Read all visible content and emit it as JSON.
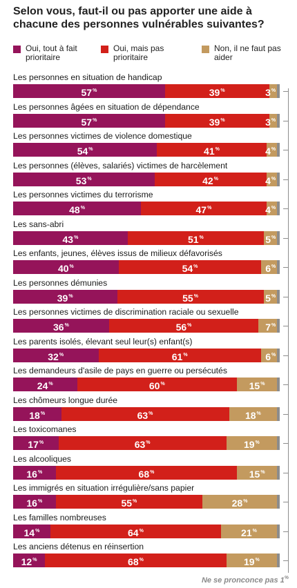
{
  "title": "Selon vous, faut-il ou pas apporter une aide à chacune des personnes vulnérables suivantes?",
  "colors": {
    "prioritaire": "#95145a",
    "pas_prioritaire": "#d2201a",
    "non": "#c39a5f",
    "ne_se_prononce_pas": "#8c8c8c"
  },
  "legend": [
    {
      "key": "prioritaire",
      "label": "Oui, tout à fait prioritaire"
    },
    {
      "key": "pas_prioritaire",
      "label": "Oui, mais pas prioritaire"
    },
    {
      "key": "non",
      "label": "Non, il ne faut pas aider"
    }
  ],
  "percent_sign": "%",
  "note": "Ne se pronconce pas 1",
  "note_sup": "%",
  "chart_data": {
    "type": "bar",
    "orientation": "horizontal",
    "stacked": true,
    "unit": "%",
    "categories": [
      "Les personnes en situation de handicap",
      "Les personnes âgées en situation de dépendance",
      "Les personnes victimes de violence domestique",
      "Les personnes (élèves, salariés) victimes de harcèlement",
      "Les personnes victimes du terrorisme",
      "Les sans-abri",
      "Les enfants, jeunes, élèves issus de milieux défavorisés",
      "Les personnes démunies",
      "Les personnes victimes de discrimination raciale ou sexuelle",
      "Les parents isolés, élevant seul leur(s) enfant(s)",
      "Les demandeurs d'asile de pays en guerre ou persécutés",
      "Les chômeurs longue durée",
      "Les toxicomanes",
      "Les alcooliques",
      "Les immigrés en situation irrégulière/sans papier",
      "Les familles nombreuses",
      "Les anciens détenus en réinsertion"
    ],
    "series": [
      {
        "name": "Oui, tout à fait prioritaire",
        "values": [
          57,
          57,
          54,
          53,
          48,
          43,
          40,
          39,
          36,
          32,
          24,
          18,
          17,
          16,
          16,
          14,
          12
        ]
      },
      {
        "name": "Oui, mais pas prioritaire",
        "values": [
          39,
          39,
          41,
          42,
          47,
          51,
          54,
          55,
          56,
          61,
          60,
          63,
          63,
          68,
          55,
          64,
          68
        ]
      },
      {
        "name": "Non, il ne faut pas aider",
        "values": [
          3,
          3,
          4,
          4,
          4,
          5,
          6,
          5,
          7,
          6,
          15,
          18,
          19,
          15,
          28,
          21,
          19
        ]
      },
      {
        "name": "Ne se pronconce pas",
        "values": [
          1,
          1,
          1,
          1,
          1,
          1,
          1,
          1,
          1,
          1,
          1,
          1,
          1,
          1,
          1,
          1,
          1
        ]
      }
    ],
    "xlim": [
      0,
      100
    ]
  }
}
